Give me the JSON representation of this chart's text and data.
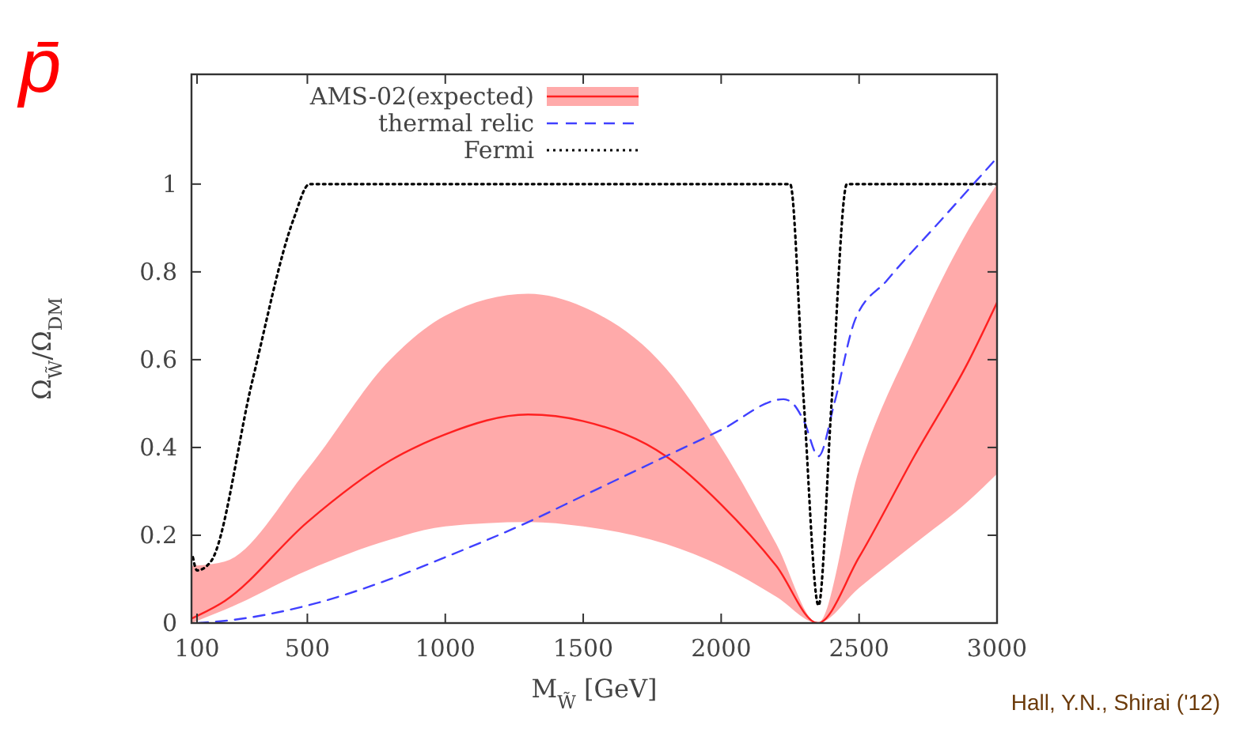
{
  "chart_data": {
    "type": "line",
    "title": "p̄",
    "xlabel": "M$_{W̃}$ [GeV]",
    "ylabel": "Ω$_{W̃}$/Ω$_{DM}$",
    "xlim": [
      80,
      3000
    ],
    "ylim": [
      0,
      1.25
    ],
    "xticks": [
      100,
      500,
      1000,
      1500,
      2000,
      2500,
      3000
    ],
    "yticks": [
      0,
      0.2,
      0.4,
      0.6,
      0.8,
      1
    ],
    "grid": false,
    "legend": "top",
    "annotations": [
      "Hall, Y.N., Shirai ('12)"
    ],
    "series": [
      {
        "name": "AMS-02(expected)",
        "color": "#ff2020",
        "line_style": "solid",
        "x": [
          80,
          200,
          500,
          800,
          1000,
          1300,
          1500,
          1800,
          2000,
          2200,
          2350,
          2500,
          2700,
          2900,
          3000
        ],
        "values": [
          0.01,
          0.05,
          0.23,
          0.37,
          0.43,
          0.475,
          0.46,
          0.38,
          0.27,
          0.13,
          0,
          0.15,
          0.38,
          0.6,
          0.73
        ],
        "upper": [
          0.13,
          0.14,
          0.35,
          0.6,
          0.7,
          0.75,
          0.72,
          0.58,
          0.4,
          0.18,
          0,
          0.35,
          0.65,
          0.9,
          1.0
        ],
        "lower": [
          0,
          0.03,
          0.12,
          0.19,
          0.22,
          0.23,
          0.22,
          0.18,
          0.13,
          0.06,
          0,
          0.08,
          0.18,
          0.28,
          0.34
        ]
      },
      {
        "name": "thermal relic",
        "color": "#4040ff",
        "line_style": "dashed",
        "x": [
          100,
          200,
          500,
          800,
          1000,
          1300,
          1500,
          1800,
          2000,
          2226,
          2260,
          2300,
          2353,
          2410,
          2485,
          2600,
          2800,
          3000
        ],
        "values": [
          0,
          0.005,
          0.04,
          0.1,
          0.15,
          0.23,
          0.29,
          0.38,
          0.44,
          0.51,
          0.5,
          0.46,
          0.38,
          0.5,
          0.69,
          0.78,
          0.92,
          1.06
        ]
      },
      {
        "name": "Fermi",
        "color": "#000000",
        "line_style": "dotted",
        "x": [
          85,
          100,
          150,
          300,
          450,
          508,
          2250,
          2300,
          2353,
          2400,
          2456,
          3000
        ],
        "values": [
          0.15,
          0.12,
          0.14,
          0.55,
          0.92,
          1,
          1,
          0.5,
          0.04,
          0.5,
          1,
          1
        ]
      }
    ]
  }
}
